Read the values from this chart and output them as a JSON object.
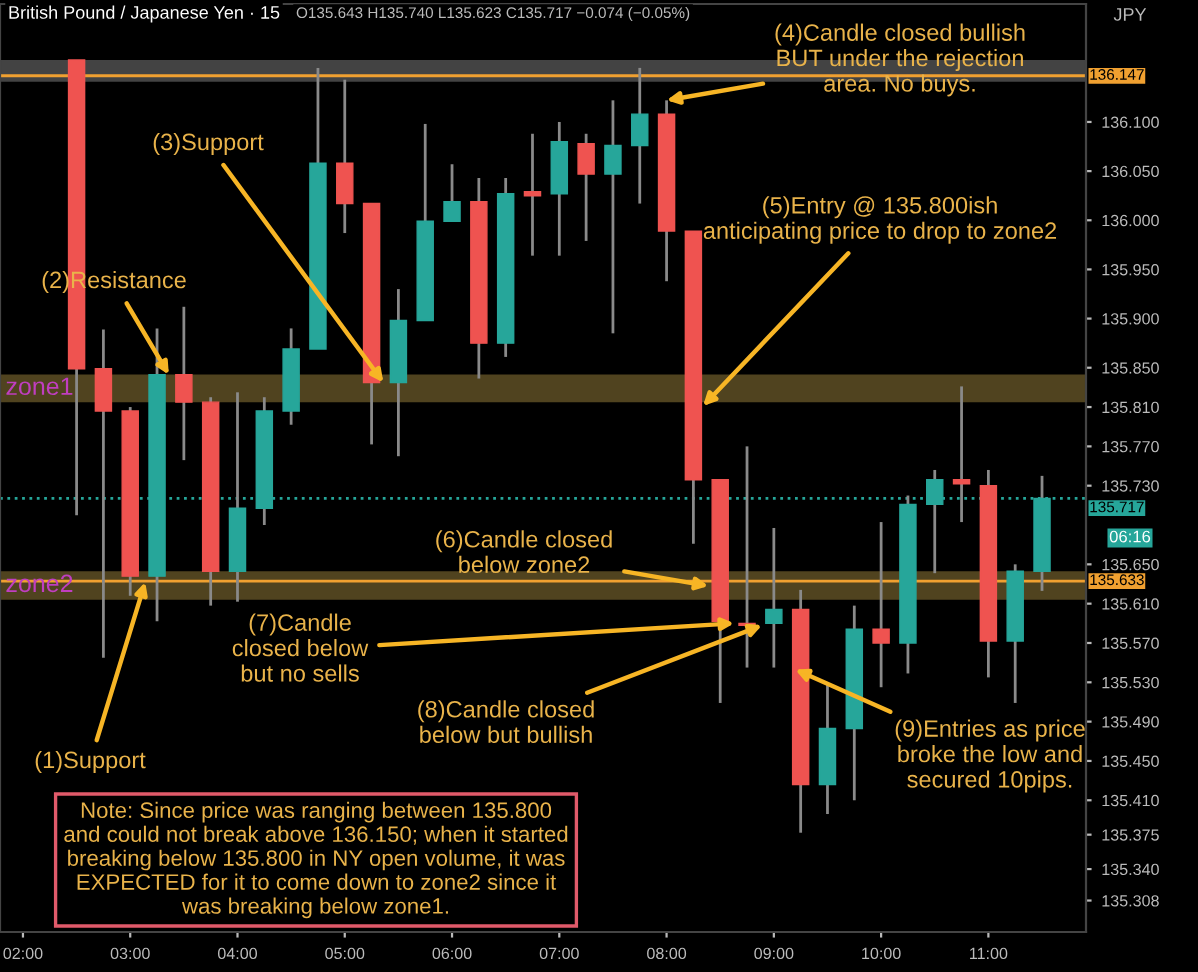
{
  "chart_data": {
    "type": "candlestick",
    "title": "British Pound / Japanese Yen · 15",
    "subtitle": "O135.643 H135.740 L135.623 C135.717 −0.074 (−0.05%)",
    "ylabel": "JPY",
    "x": [
      2.5,
      2.75,
      3.0,
      3.25,
      3.5,
      3.75,
      4.0,
      4.25,
      4.5,
      4.75,
      5.0,
      5.25,
      5.5,
      5.75,
      6.0,
      6.25,
      6.5,
      6.75,
      7.0,
      7.25,
      7.5,
      7.75,
      8.0,
      8.25,
      8.5,
      8.75,
      9.0,
      9.25,
      9.5,
      9.75,
      10.0,
      10.25,
      10.5,
      10.75,
      11.0,
      11.25,
      11.5
    ],
    "ohlc": [
      [
        136.163,
        136.163,
        135.7,
        135.849
      ],
      [
        135.849,
        135.889,
        135.555,
        135.806
      ],
      [
        135.806,
        135.81,
        135.618,
        135.638
      ],
      [
        135.638,
        135.89,
        135.592,
        135.843
      ],
      [
        135.843,
        135.912,
        135.756,
        135.815
      ],
      [
        135.815,
        135.82,
        135.608,
        135.643
      ],
      [
        135.643,
        135.825,
        135.612,
        135.707
      ],
      [
        135.707,
        135.82,
        135.69,
        135.806
      ],
      [
        135.806,
        135.89,
        135.792,
        135.869
      ],
      [
        135.869,
        136.155,
        135.869,
        136.058
      ],
      [
        136.058,
        136.143,
        135.987,
        136.017
      ],
      [
        136.017,
        136.017,
        135.772,
        135.835
      ],
      [
        135.835,
        135.93,
        135.76,
        135.898
      ],
      [
        135.898,
        136.098,
        135.898,
        135.999
      ],
      [
        135.999,
        136.057,
        135.999,
        136.019
      ],
      [
        136.019,
        136.043,
        135.839,
        135.875
      ],
      [
        135.875,
        136.043,
        135.861,
        136.027
      ],
      [
        136.029,
        136.088,
        135.964,
        136.025
      ],
      [
        136.027,
        136.1,
        135.964,
        136.08
      ],
      [
        136.078,
        136.088,
        135.979,
        136.047
      ],
      [
        136.047,
        136.122,
        135.885,
        136.076
      ],
      [
        136.076,
        136.155,
        136.017,
        136.108
      ],
      [
        136.108,
        136.122,
        135.938,
        135.989
      ],
      [
        135.989,
        135.989,
        135.671,
        135.736
      ],
      [
        135.736,
        135.736,
        135.509,
        135.592
      ],
      [
        135.59,
        135.77,
        135.545,
        135.588
      ],
      [
        135.59,
        135.687,
        135.545,
        135.604
      ],
      [
        135.604,
        135.624,
        135.377,
        135.426
      ],
      [
        135.426,
        135.528,
        135.396,
        135.483
      ],
      [
        135.483,
        135.608,
        135.41,
        135.584
      ],
      [
        135.584,
        135.693,
        135.525,
        135.57
      ],
      [
        135.57,
        135.72,
        135.539,
        135.711
      ],
      [
        135.711,
        135.746,
        135.641,
        135.736
      ],
      [
        135.736,
        135.831,
        135.693,
        135.732
      ],
      [
        135.73,
        135.746,
        135.535,
        135.572
      ],
      [
        135.572,
        135.65,
        135.509,
        135.643
      ],
      [
        135.643,
        135.74,
        135.623,
        135.717
      ]
    ],
    "colors": [
      "#ef5350",
      "#ef5350",
      "#ef5350",
      "#26a69a",
      "#ef5350",
      "#ef5350",
      "#26a69a",
      "#26a69a",
      "#26a69a",
      "#26a69a",
      "#ef5350",
      "#ef5350",
      "#26a69a",
      "#26a69a",
      "#26a69a",
      "#ef5350",
      "#26a69a",
      "#ef5350",
      "#26a69a",
      "#ef5350",
      "#26a69a",
      "#26a69a",
      "#ef5350",
      "#ef5350",
      "#ef5350",
      "#ef5350",
      "#26a69a",
      "#ef5350",
      "#26a69a",
      "#26a69a",
      "#ef5350",
      "#26a69a",
      "#26a69a",
      "#ef5350",
      "#ef5350",
      "#26a69a",
      "#26a69a"
    ],
    "xlim": [
      1.786,
      11.91
    ],
    "xticks": [
      {
        "value": 2,
        "label": "02:00"
      },
      {
        "value": 3,
        "label": "03:00"
      },
      {
        "value": 4,
        "label": "04:00"
      },
      {
        "value": 5,
        "label": "05:00"
      },
      {
        "value": 6,
        "label": "06:00"
      },
      {
        "value": 7,
        "label": "07:00"
      },
      {
        "value": 8,
        "label": "08:00"
      },
      {
        "value": 9,
        "label": "09:00"
      },
      {
        "value": 10,
        "label": "10:00"
      },
      {
        "value": 11,
        "label": "11:00"
      }
    ],
    "ylim": [
      135.276,
      136.22
    ],
    "yticks": [
      {
        "value": 136.1,
        "label": "136.100"
      },
      {
        "value": 136.05,
        "label": "136.050"
      },
      {
        "value": 136.0,
        "label": "136.000"
      },
      {
        "value": 135.95,
        "label": "135.950"
      },
      {
        "value": 135.9,
        "label": "135.900"
      },
      {
        "value": 135.85,
        "label": "135.850"
      },
      {
        "value": 135.81,
        "label": "135.810"
      },
      {
        "value": 135.77,
        "label": "135.770"
      },
      {
        "value": 135.73,
        "label": "135.730"
      },
      {
        "value": 135.65,
        "label": "135.650"
      },
      {
        "value": 135.61,
        "label": "135.610"
      },
      {
        "value": 135.57,
        "label": "135.570"
      },
      {
        "value": 135.53,
        "label": "135.530"
      },
      {
        "value": 135.49,
        "label": "135.490"
      },
      {
        "value": 135.45,
        "label": "135.450"
      },
      {
        "value": 135.41,
        "label": "135.410"
      },
      {
        "value": 135.375,
        "label": "135.375"
      },
      {
        "value": 135.34,
        "label": "135.340"
      },
      {
        "value": 135.308,
        "label": "135.308"
      }
    ],
    "bands": [
      {
        "axis": "y",
        "from": 136.141,
        "to": 136.163,
        "color": "#5a5a5a"
      },
      {
        "axis": "y",
        "from": 135.815,
        "to": 135.843,
        "label": "zone1",
        "color": "#6b5a2a"
      },
      {
        "axis": "y",
        "from": 135.614,
        "to": 135.643,
        "label": "zone2",
        "color": "#6b5a2a"
      }
    ],
    "ref_lines": [
      {
        "axis": "y",
        "value": 136.147,
        "label": "136.147",
        "color": "#f0a030",
        "line_style": "solid"
      },
      {
        "axis": "y",
        "value": 135.633,
        "label": "135.633",
        "color": "#f0a030",
        "line_style": "solid"
      },
      {
        "axis": "y",
        "value": 135.717,
        "label": "135.717",
        "color": "#26a69a",
        "line_style": "dotted"
      }
    ],
    "annotations": [
      {
        "text": "(1)Support",
        "x": 3.14,
        "y": 135.632
      },
      {
        "text": "(2)Resistance",
        "x": 3.36,
        "y": 135.843
      },
      {
        "text": "(3)Support",
        "x": 5.36,
        "y": 135.835
      },
      {
        "text": "(4)Candle closed bullish\nBUT under the rejection\narea. No buys.",
        "x": 8.0,
        "y": 136.122
      },
      {
        "text": "(5)Entry @ 135.800ish\nanticipating price to drop to zone2",
        "x": 8.34,
        "y": 135.811
      },
      {
        "text": "(6)Candle closed\nbelow zone2",
        "x": 8.39,
        "y": 135.628
      },
      {
        "text": "(7)Candle\nclosed below\nbut no sells",
        "x": 8.63,
        "y": 135.59
      },
      {
        "text": "(8)Candle closed\nbelow but bullish",
        "x": 8.89,
        "y": 135.588
      },
      {
        "text": "(9)Entries as price\nbroke the low and\nsecured 10pips.",
        "x": 9.2,
        "y": 135.543
      },
      "Note: Since price was ranging between 135.800\nand could not break above 136.150; when it started\nbreaking below 135.800 in NY open volume, it was\nEXPECTED for it to come down to zone2 since it\nwas breaking below zone1.",
      "06:16"
    ]
  }
}
